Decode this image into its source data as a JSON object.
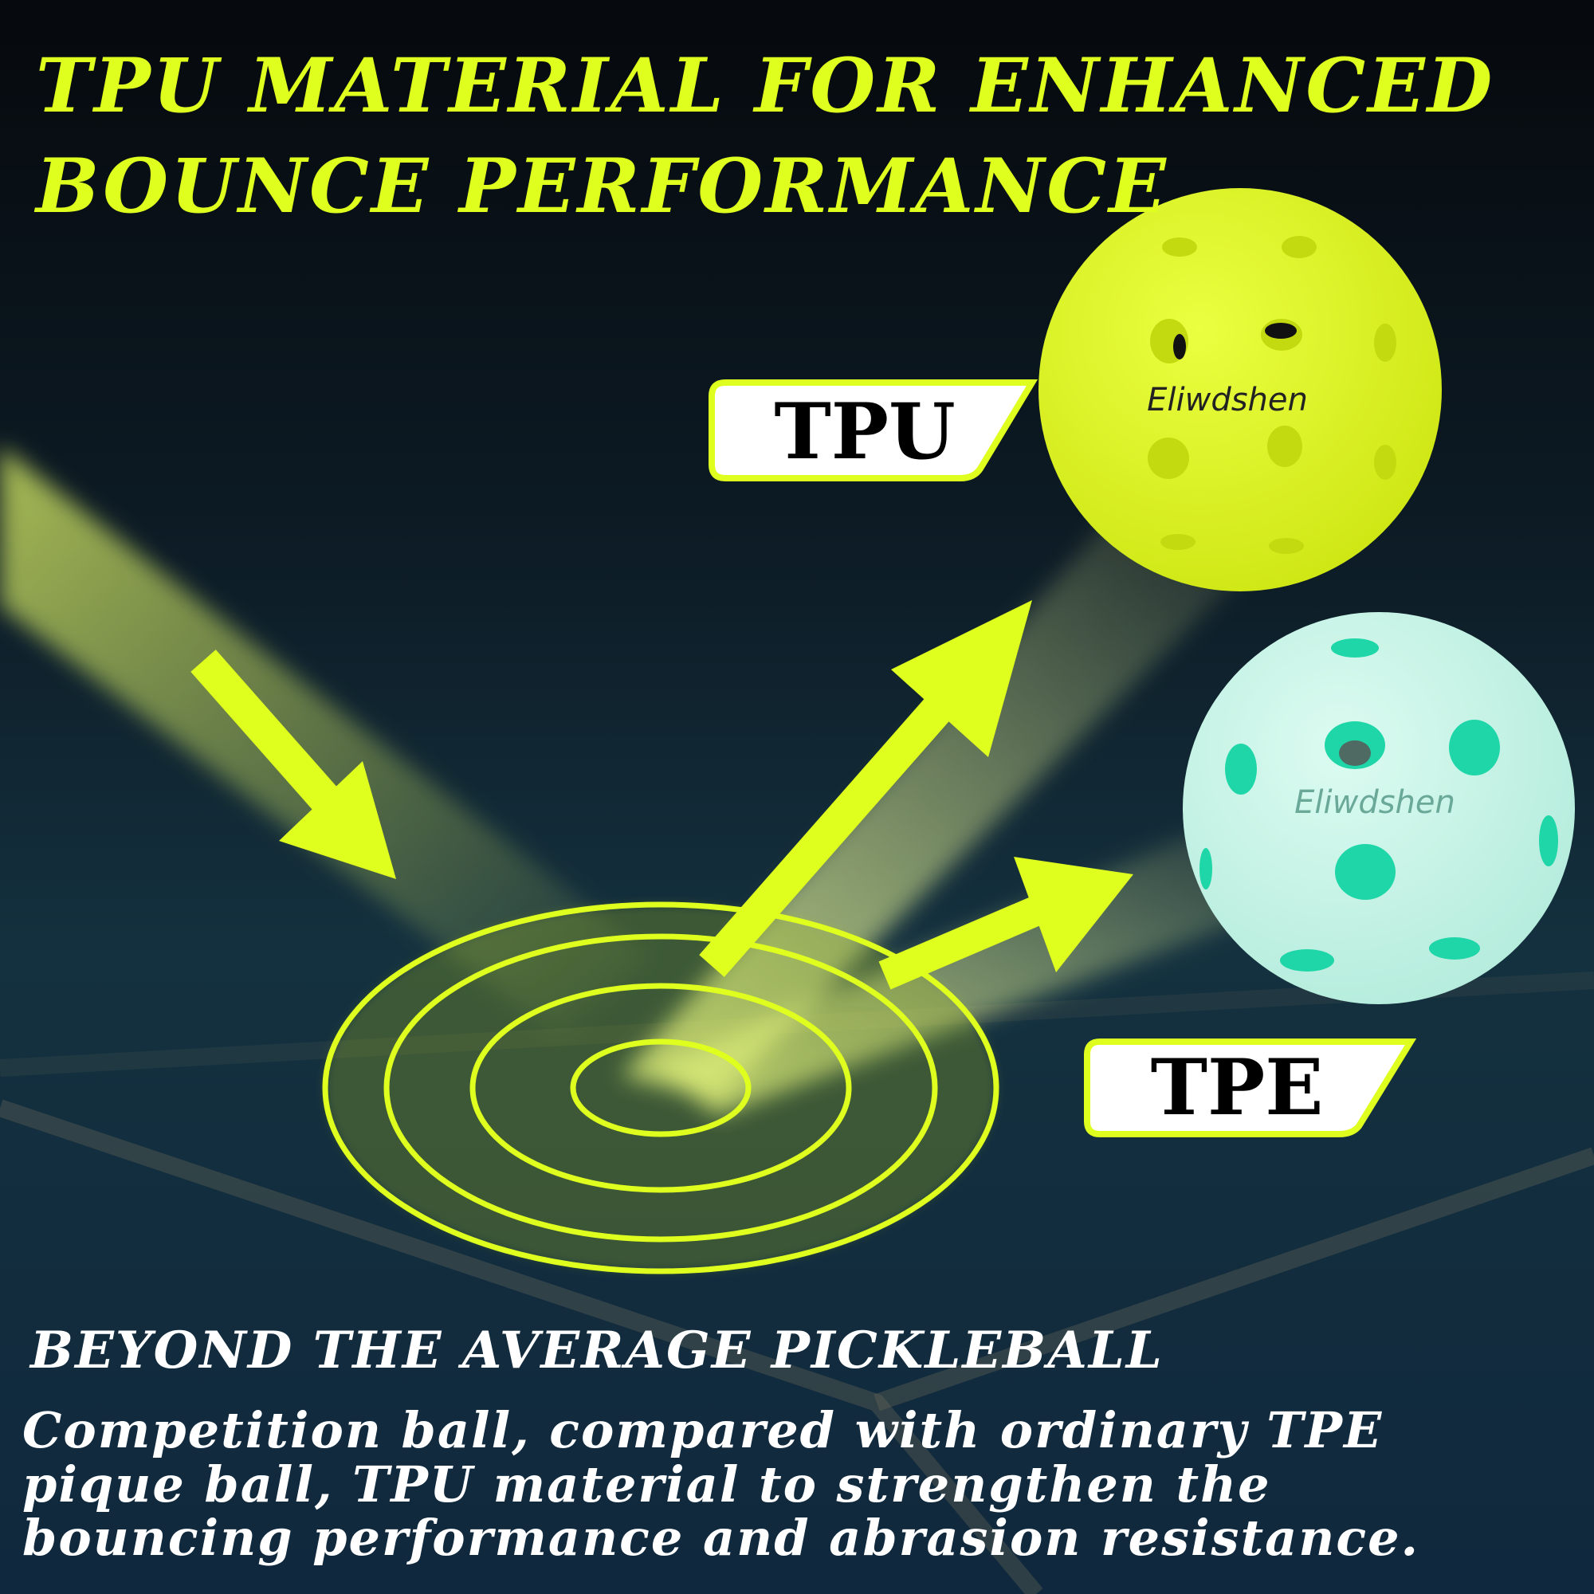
{
  "header": {
    "title_line1": "TPU MATERIAL FOR ENHANCED",
    "title_line2": "BOUNCE PERFORMANCE"
  },
  "balls": [
    {
      "label": "TPU",
      "brand": "Eliwdshen",
      "color": "#dcf51f",
      "hole_color": "#c8e012"
    },
    {
      "label": "TPE",
      "brand": "Eliwdshen",
      "color": "#c8f3e6",
      "hole_color": "#1fd6a8"
    }
  ],
  "footer": {
    "heading": "BEYOND THE AVERAGE PICKLEBALL",
    "body_lines": [
      "Competition ball, compared with ordinary TPE",
      "pique ball, TPU material to strengthen the",
      "bouncing performance and abrasion resistance."
    ]
  },
  "colors": {
    "accent": "#dfff1f",
    "background": "#0b1a26"
  }
}
